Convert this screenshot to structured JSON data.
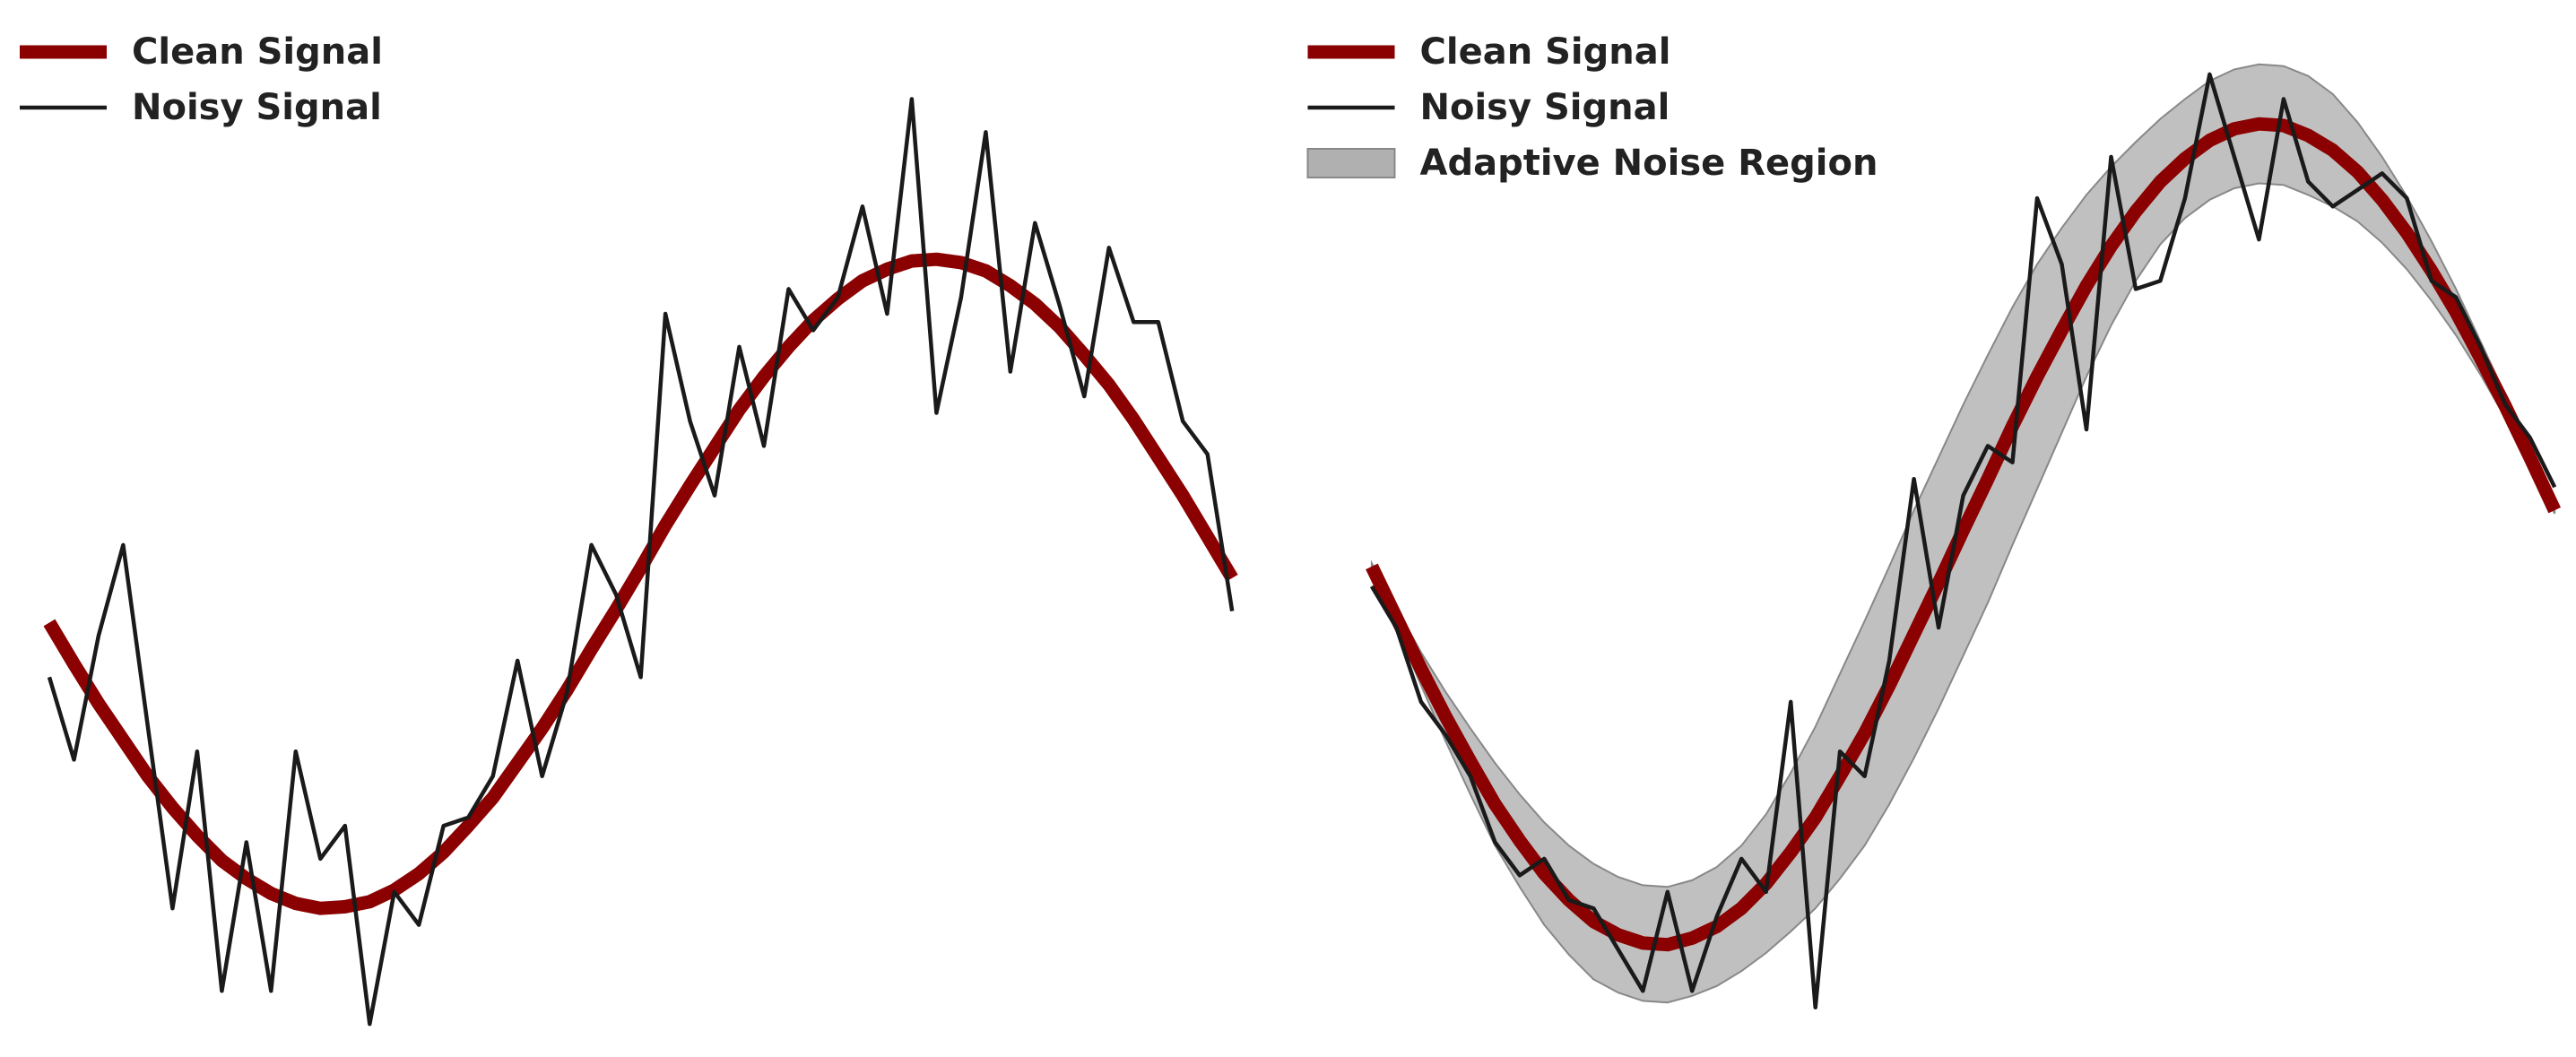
{
  "chart_data": [
    {
      "type": "line",
      "legend": "upper left",
      "xlim": [
        0,
        7.84
      ],
      "ylim": [
        -2.4,
        4.0
      ],
      "x": [
        0.3,
        0.45,
        0.6,
        0.75,
        0.9,
        1.05,
        1.2,
        1.35,
        1.5,
        1.65,
        1.8,
        1.95,
        2.1,
        2.25,
        2.4,
        2.55,
        2.7,
        2.85,
        3.0,
        3.15,
        3.3,
        3.45,
        3.6,
        3.75,
        3.9,
        4.05,
        4.2,
        4.35,
        4.5,
        4.65,
        4.8,
        4.95,
        5.1,
        5.25,
        5.4,
        5.55,
        5.7,
        5.85,
        6.0,
        6.15,
        6.3,
        6.45,
        6.6,
        6.75,
        6.9,
        7.05,
        7.2,
        7.35,
        7.5
      ],
      "series": [
        {
          "name": "Clean Signal",
          "color": "#8b0000",
          "values": [
            0.23,
            -0.02,
            -0.26,
            -0.48,
            -0.7,
            -0.89,
            -1.06,
            -1.21,
            -1.32,
            -1.41,
            -1.47,
            -1.5,
            -1.49,
            -1.46,
            -1.39,
            -1.29,
            -1.16,
            -1.0,
            -0.83,
            -0.62,
            -0.41,
            -0.18,
            0.07,
            0.31,
            0.56,
            0.82,
            1.06,
            1.29,
            1.52,
            1.72,
            1.9,
            2.06,
            2.19,
            2.3,
            2.37,
            2.42,
            2.43,
            2.41,
            2.36,
            2.27,
            2.16,
            2.02,
            1.85,
            1.67,
            1.46,
            1.23,
            1.0,
            0.75,
            0.5
          ]
        },
        {
          "name": "Noisy Signal",
          "color": "#1a1a1a",
          "values": [
            -0.1,
            -0.6,
            0.15,
            0.7,
            -0.4,
            -1.5,
            -0.55,
            -2.0,
            -1.1,
            -2.0,
            -0.55,
            -1.2,
            -1.0,
            -2.2,
            -1.4,
            -1.6,
            -1.0,
            -0.95,
            -0.7,
            0.0,
            -0.7,
            -0.2,
            0.7,
            0.4,
            -0.1,
            2.1,
            1.45,
            1.0,
            1.9,
            1.3,
            2.25,
            2.0,
            2.2,
            2.75,
            2.1,
            3.4,
            1.5,
            2.2,
            3.2,
            1.75,
            2.65,
            2.15,
            1.6,
            2.5,
            2.05,
            2.05,
            1.45,
            1.25,
            0.3
          ]
        }
      ]
    },
    {
      "type": "line",
      "legend": "upper left",
      "xlim": [
        7.84,
        15.68
      ],
      "ylim": [
        -2.4,
        4.0
      ],
      "x": [
        8.35,
        8.5,
        8.65,
        8.8,
        8.95,
        9.1,
        9.25,
        9.4,
        9.55,
        9.7,
        9.85,
        10.0,
        10.15,
        10.3,
        10.45,
        10.6,
        10.75,
        10.9,
        11.05,
        11.2,
        11.35,
        11.5,
        11.65,
        11.8,
        11.95,
        12.1,
        12.25,
        12.4,
        12.55,
        12.7,
        12.85,
        13.0,
        13.15,
        13.3,
        13.45,
        13.6,
        13.75,
        13.9,
        14.05,
        14.2,
        14.35,
        14.5,
        14.65,
        14.8,
        14.95,
        15.1,
        15.25,
        15.4,
        15.55
      ],
      "series": [
        {
          "name": "Clean Signal",
          "color": "#8b0000",
          "values": [
            0.57,
            0.26,
            -0.05,
            -0.34,
            -0.61,
            -0.87,
            -1.09,
            -1.29,
            -1.45,
            -1.58,
            -1.66,
            -1.71,
            -1.72,
            -1.68,
            -1.61,
            -1.5,
            -1.35,
            -1.16,
            -0.95,
            -0.7,
            -0.44,
            -0.15,
            0.16,
            0.47,
            0.79,
            1.1,
            1.42,
            1.72,
            2.0,
            2.27,
            2.51,
            2.72,
            2.9,
            3.04,
            3.15,
            3.22,
            3.25,
            3.24,
            3.18,
            3.09,
            2.96,
            2.79,
            2.59,
            2.36,
            2.11,
            1.83,
            1.54,
            1.23,
            0.91
          ]
        },
        {
          "name": "Noisy Signal",
          "color": "#1a1a1a",
          "values": [
            0.45,
            0.2,
            -0.25,
            -0.45,
            -0.7,
            -1.1,
            -1.3,
            -1.2,
            -1.45,
            -1.5,
            -1.75,
            -2.0,
            -1.4,
            -2.0,
            -1.55,
            -1.2,
            -1.4,
            -0.25,
            -2.1,
            -0.55,
            -0.7,
            0.0,
            1.1,
            0.2,
            1.0,
            1.3,
            1.2,
            2.8,
            2.4,
            1.4,
            3.05,
            2.25,
            2.3,
            2.8,
            3.55,
            3.05,
            2.55,
            3.4,
            2.9,
            2.75,
            2.85,
            2.95,
            2.8,
            2.3,
            2.2,
            1.9,
            1.55,
            1.35,
            1.05
          ]
        },
        {
          "name": "Adaptive Noise Region",
          "color": "#b0b0b0",
          "lower": [
            0.55,
            0.2,
            -0.15,
            -0.49,
            -0.81,
            -1.12,
            -1.37,
            -1.6,
            -1.78,
            -1.93,
            -2.01,
            -2.06,
            -2.07,
            -2.03,
            -1.97,
            -1.88,
            -1.77,
            -1.64,
            -1.5,
            -1.32,
            -1.12,
            -0.87,
            -0.59,
            -0.29,
            0.03,
            0.35,
            0.7,
            1.04,
            1.38,
            1.72,
            2.03,
            2.3,
            2.52,
            2.68,
            2.79,
            2.86,
            2.89,
            2.88,
            2.82,
            2.75,
            2.66,
            2.53,
            2.37,
            2.18,
            1.97,
            1.73,
            1.47,
            1.19,
            0.89
          ],
          "upper": [
            0.59,
            0.32,
            0.05,
            -0.19,
            -0.41,
            -0.62,
            -0.81,
            -0.98,
            -1.12,
            -1.23,
            -1.31,
            -1.36,
            -1.37,
            -1.33,
            -1.25,
            -1.12,
            -0.93,
            -0.68,
            -0.4,
            -0.08,
            0.24,
            0.57,
            0.91,
            1.23,
            1.55,
            1.85,
            2.14,
            2.4,
            2.62,
            2.82,
            2.99,
            3.14,
            3.28,
            3.4,
            3.51,
            3.58,
            3.61,
            3.6,
            3.54,
            3.43,
            3.26,
            3.05,
            2.81,
            2.54,
            2.25,
            1.93,
            1.61,
            1.27,
            0.93
          ]
        }
      ]
    }
  ]
}
